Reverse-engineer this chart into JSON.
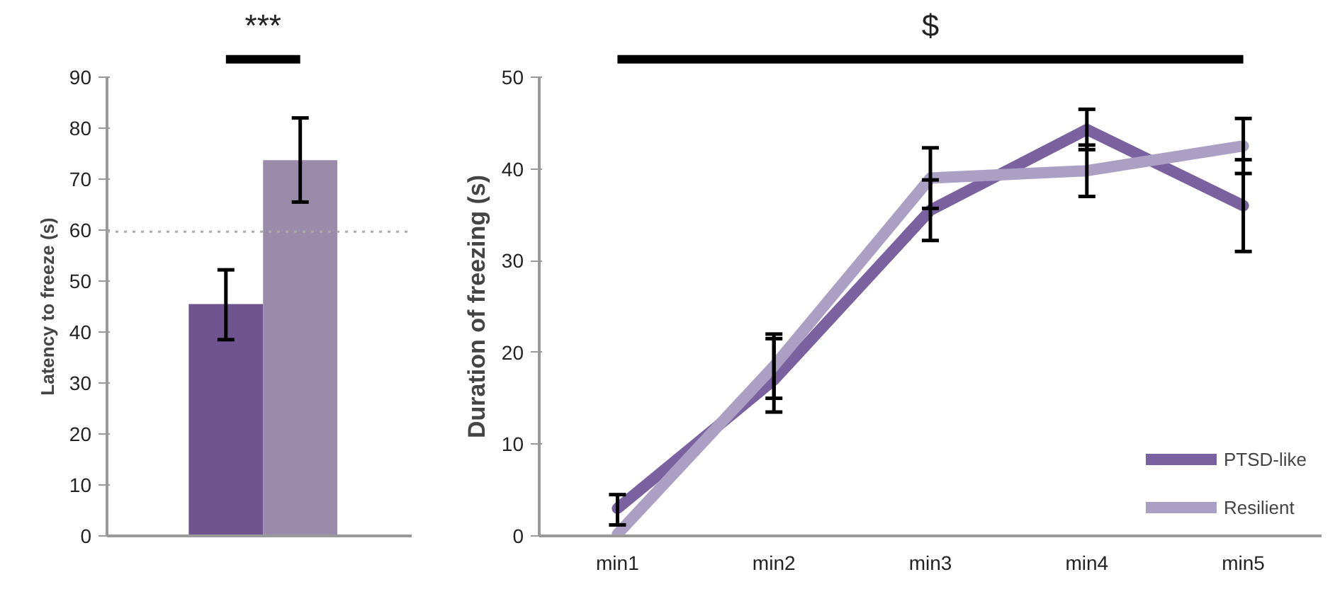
{
  "chart_data": [
    {
      "type": "bar",
      "categories": [
        null,
        null
      ],
      "values": [
        45.5,
        73.7
      ],
      "colors": [
        "#6f5490",
        "#9a8bab"
      ],
      "errors": [
        [
          38.5,
          52.2
        ],
        [
          65.5,
          82
        ]
      ],
      "ylabel": "Latency to freeze (s)",
      "ylim": [
        0,
        90
      ],
      "yticks": [
        0,
        10,
        20,
        30,
        40,
        50,
        60,
        70,
        80,
        90
      ],
      "ref_lines": [
        {
          "axis": "y",
          "value": 59.7,
          "color": "#aaaaaa",
          "line_style": "dotted"
        }
      ],
      "annotations": [
        "***"
      ]
    },
    {
      "type": "line",
      "categories": [
        "min1",
        "min2",
        "min3",
        "min4",
        "min5"
      ],
      "series": [
        {
          "name": "PTSD-like",
          "color": "#7a62a0",
          "values": [
            3,
            17,
            35.5,
            44.3,
            36
          ],
          "errors": [
            [
              1.2,
              4.5
            ],
            [
              13.5,
              21.5
            ],
            3.3,
            2.2,
            5
          ]
        },
        {
          "name": "Resilient",
          "color": "#ab9fc4",
          "values": [
            0.2,
            18.5,
            39,
            39.8,
            42.5
          ],
          "errors": [
            null,
            [
              15,
              22
            ],
            3.3,
            2.8,
            3
          ]
        }
      ],
      "ylabel": "Duration of freezing (s)",
      "ylim": [
        0,
        50
      ],
      "yticks": [
        0,
        10,
        20,
        30,
        40,
        50
      ],
      "legend": "bottom right",
      "marker": "none",
      "line_style": "solid",
      "annotations": [
        "$"
      ]
    }
  ]
}
